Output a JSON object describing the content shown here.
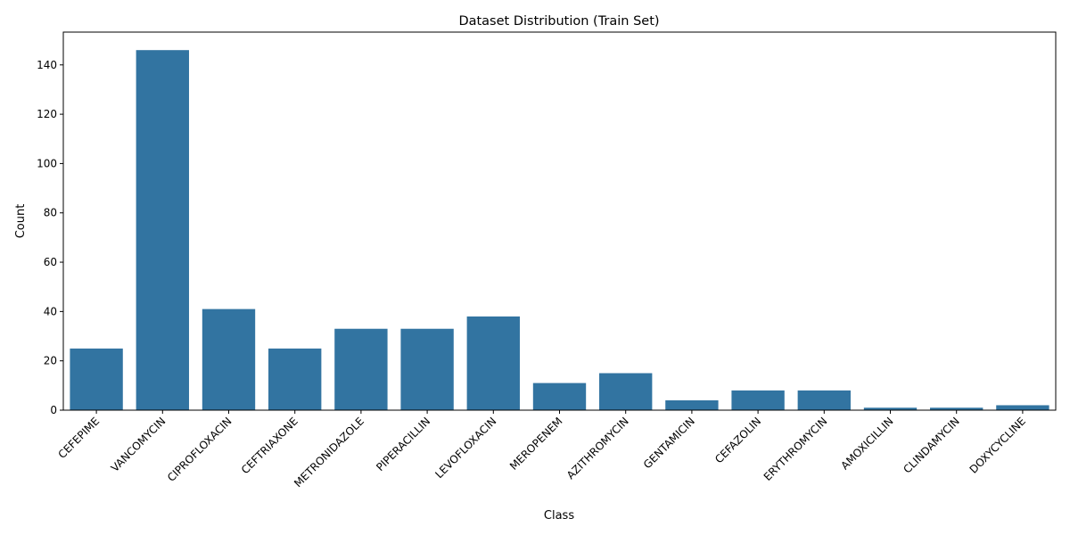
{
  "chart_data": {
    "type": "bar",
    "title": "Dataset Distribution (Train Set)",
    "xlabel": "Class",
    "ylabel": "Count",
    "categories": [
      "CEFEPIME",
      "VANCOMYCIN",
      "CIPROFLOXACIN",
      "CEFTRIAXONE",
      "METRONIDAZOLE",
      "PIPERACILLIN",
      "LEVOFLOXACIN",
      "MEROPENEM",
      "AZITHROMYCIN",
      "GENTAMICIN",
      "CEFAZOLIN",
      "ERYTHROMYCIN",
      "AMOXICILLIN",
      "CLINDAMYCIN",
      "DOXYCYCLINE"
    ],
    "values": [
      25,
      146,
      41,
      25,
      33,
      33,
      38,
      11,
      15,
      4,
      8,
      8,
      1,
      1,
      2
    ],
    "ylim": [
      0,
      153.3
    ],
    "yticks": [
      0,
      20,
      40,
      60,
      80,
      100,
      120,
      140
    ],
    "grid": false,
    "bar_color": "#3274a1"
  }
}
